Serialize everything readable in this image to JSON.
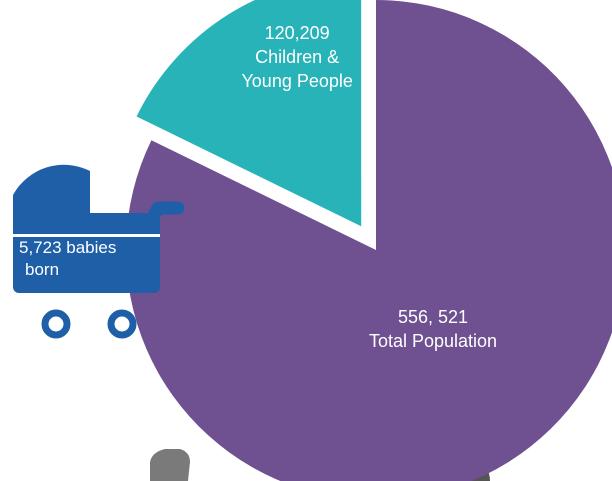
{
  "chart_data": {
    "type": "pie",
    "title": "",
    "slices": [
      {
        "label_value": "556, 521",
        "label_text": "Total Population",
        "value": 556521,
        "color": "#6f5091"
      },
      {
        "label_value": "120,209",
        "label_text": "Children &",
        "label_text2": "Young People",
        "value": 120209,
        "color": "#27b3b8",
        "exploded": true
      }
    ]
  },
  "annotation": {
    "icon": "pram-icon",
    "color": "#1e5fa8",
    "line1": "5,723 babies",
    "line2": "born"
  }
}
